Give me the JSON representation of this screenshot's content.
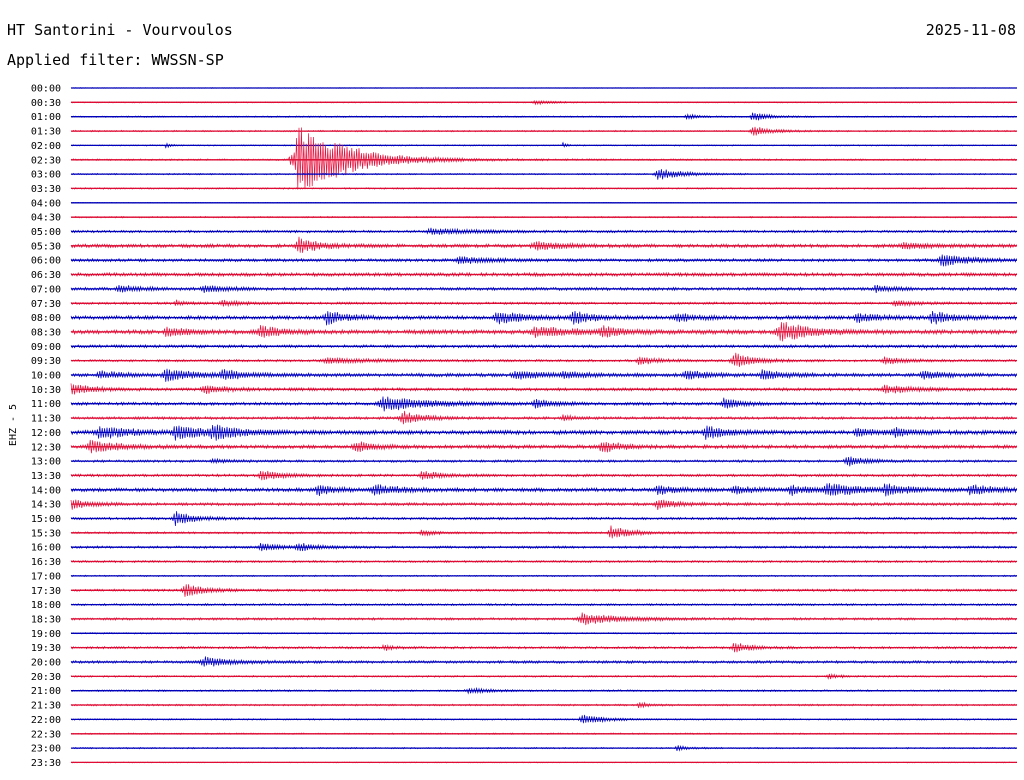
{
  "header": {
    "station": "HT Santorini - Vourvoulos",
    "date": "2025-11-08",
    "filter": "Applied filter: WWSSN-SP"
  },
  "chart_data": {
    "type": "helicorder",
    "title": "HT Santorini - Vourvoulos",
    "date": "2025-11-08",
    "filter": "WWSSN-SP",
    "channel_label": "EHZ - 5",
    "trace_colors": [
      "#0000cc",
      "#e8103c"
    ],
    "baseline_colors": [
      "#000099",
      "#cc0022"
    ],
    "grid": false,
    "rows": [
      {
        "label": "00:00",
        "noise": 0.3,
        "events": []
      },
      {
        "label": "00:30",
        "noise": 0.4,
        "events": [
          [
            0.49,
            2,
            0.02
          ]
        ]
      },
      {
        "label": "01:00",
        "noise": 0.5,
        "events": [
          [
            0.65,
            3,
            0.01
          ],
          [
            0.72,
            5,
            0.015
          ]
        ]
      },
      {
        "label": "01:30",
        "noise": 0.5,
        "events": [
          [
            0.72,
            5,
            0.02
          ]
        ]
      },
      {
        "label": "02:00",
        "noise": 0.4,
        "events": [
          [
            0.1,
            3,
            0.005
          ],
          [
            0.52,
            3,
            0.004
          ]
        ]
      },
      {
        "label": "02:30",
        "noise": 0.6,
        "events": [
          [
            0.24,
            35,
            0.05
          ],
          [
            0.28,
            5,
            0.02
          ]
        ]
      },
      {
        "label": "03:00",
        "noise": 0.5,
        "events": [
          [
            0.62,
            6,
            0.025
          ]
        ]
      },
      {
        "label": "03:30",
        "noise": 0.5,
        "events": []
      },
      {
        "label": "04:00",
        "noise": 0.3,
        "events": []
      },
      {
        "label": "04:30",
        "noise": 0.5,
        "events": []
      },
      {
        "label": "05:00",
        "noise": 0.8,
        "events": [
          [
            0.38,
            3,
            0.05
          ]
        ]
      },
      {
        "label": "05:30",
        "noise": 1.2,
        "events": [
          [
            0.24,
            8,
            0.02
          ],
          [
            0.49,
            4,
            0.03
          ],
          [
            0.88,
            3,
            0.03
          ]
        ]
      },
      {
        "label": "06:00",
        "noise": 1.0,
        "events": [
          [
            0.41,
            4,
            0.03
          ],
          [
            0.92,
            6,
            0.03
          ]
        ]
      },
      {
        "label": "06:30",
        "noise": 1.2,
        "events": []
      },
      {
        "label": "07:00",
        "noise": 1.0,
        "events": [
          [
            0.05,
            3,
            0.03
          ],
          [
            0.14,
            4,
            0.02
          ],
          [
            0.85,
            3,
            0.02
          ]
        ]
      },
      {
        "label": "07:30",
        "noise": 0.8,
        "events": [
          [
            0.11,
            3,
            0.01
          ],
          [
            0.16,
            3,
            0.02
          ],
          [
            0.87,
            3,
            0.02
          ]
        ]
      },
      {
        "label": "08:00",
        "noise": 1.3,
        "events": [
          [
            0.27,
            7,
            0.02
          ],
          [
            0.45,
            6,
            0.03
          ],
          [
            0.53,
            6,
            0.02
          ],
          [
            0.64,
            4,
            0.02
          ],
          [
            0.83,
            5,
            0.02
          ],
          [
            0.91,
            7,
            0.02
          ]
        ]
      },
      {
        "label": "08:30",
        "noise": 1.4,
        "events": [
          [
            0.1,
            5,
            0.02
          ],
          [
            0.2,
            6,
            0.02
          ],
          [
            0.49,
            5,
            0.04
          ],
          [
            0.56,
            5,
            0.02
          ],
          [
            0.75,
            11,
            0.03
          ]
        ]
      },
      {
        "label": "09:00",
        "noise": 1.0,
        "events": []
      },
      {
        "label": "09:30",
        "noise": 0.8,
        "events": [
          [
            0.27,
            3,
            0.04
          ],
          [
            0.6,
            4,
            0.02
          ],
          [
            0.7,
            8,
            0.02
          ],
          [
            0.86,
            4,
            0.02
          ]
        ]
      },
      {
        "label": "10:00",
        "noise": 1.2,
        "events": [
          [
            0.03,
            4,
            0.02
          ],
          [
            0.1,
            6,
            0.03
          ],
          [
            0.16,
            5,
            0.02
          ],
          [
            0.47,
            4,
            0.03
          ],
          [
            0.52,
            3,
            0.02
          ],
          [
            0.65,
            5,
            0.02
          ],
          [
            0.73,
            5,
            0.02
          ],
          [
            0.9,
            4,
            0.02
          ]
        ]
      },
      {
        "label": "10:30",
        "noise": 1.0,
        "events": [
          [
            0.0,
            6,
            0.02
          ],
          [
            0.14,
            5,
            0.02
          ],
          [
            0.86,
            4,
            0.03
          ]
        ]
      },
      {
        "label": "11:00",
        "noise": 1.0,
        "events": [
          [
            0.33,
            7,
            0.05
          ],
          [
            0.49,
            4,
            0.02
          ],
          [
            0.69,
            5,
            0.02
          ]
        ]
      },
      {
        "label": "11:30",
        "noise": 0.9,
        "events": [
          [
            0.35,
            7,
            0.02
          ],
          [
            0.52,
            3,
            0.01
          ]
        ]
      },
      {
        "label": "12:00",
        "noise": 1.4,
        "events": [
          [
            0.03,
            7,
            0.03
          ],
          [
            0.11,
            7,
            0.03
          ],
          [
            0.15,
            6,
            0.03
          ],
          [
            0.67,
            7,
            0.02
          ],
          [
            0.83,
            4,
            0.02
          ],
          [
            0.87,
            4,
            0.02
          ]
        ]
      },
      {
        "label": "12:30",
        "noise": 1.2,
        "events": [
          [
            0.02,
            6,
            0.03
          ],
          [
            0.3,
            5,
            0.02
          ],
          [
            0.56,
            6,
            0.02
          ]
        ]
      },
      {
        "label": "13:00",
        "noise": 0.8,
        "events": [
          [
            0.15,
            2,
            0.02
          ],
          [
            0.82,
            5,
            0.02
          ]
        ]
      },
      {
        "label": "13:30",
        "noise": 0.9,
        "events": [
          [
            0.2,
            6,
            0.02
          ],
          [
            0.37,
            5,
            0.02
          ]
        ]
      },
      {
        "label": "14:00",
        "noise": 1.2,
        "events": [
          [
            0.26,
            5,
            0.02
          ],
          [
            0.32,
            5,
            0.03
          ],
          [
            0.62,
            5,
            0.02
          ],
          [
            0.7,
            4,
            0.02
          ],
          [
            0.76,
            5,
            0.02
          ],
          [
            0.8,
            6,
            0.04
          ],
          [
            0.86,
            5,
            0.02
          ],
          [
            0.95,
            6,
            0.02
          ]
        ]
      },
      {
        "label": "14:30",
        "noise": 1.0,
        "events": [
          [
            0.0,
            5,
            0.02
          ],
          [
            0.62,
            5,
            0.02
          ]
        ]
      },
      {
        "label": "15:00",
        "noise": 0.8,
        "events": [
          [
            0.11,
            7,
            0.02
          ]
        ]
      },
      {
        "label": "15:30",
        "noise": 0.7,
        "events": [
          [
            0.37,
            4,
            0.01
          ],
          [
            0.57,
            7,
            0.02
          ]
        ]
      },
      {
        "label": "16:00",
        "noise": 0.8,
        "events": [
          [
            0.2,
            4,
            0.02
          ],
          [
            0.24,
            4,
            0.02
          ]
        ]
      },
      {
        "label": "16:30",
        "noise": 0.7,
        "events": []
      },
      {
        "label": "17:00",
        "noise": 0.5,
        "events": []
      },
      {
        "label": "17:30",
        "noise": 0.8,
        "events": [
          [
            0.12,
            7,
            0.02
          ]
        ]
      },
      {
        "label": "18:00",
        "noise": 0.7,
        "events": []
      },
      {
        "label": "18:30",
        "noise": 0.8,
        "events": [
          [
            0.54,
            6,
            0.04
          ]
        ]
      },
      {
        "label": "19:00",
        "noise": 0.5,
        "events": []
      },
      {
        "label": "19:30",
        "noise": 0.8,
        "events": [
          [
            0.33,
            3,
            0.01
          ],
          [
            0.7,
            5,
            0.02
          ]
        ]
      },
      {
        "label": "20:00",
        "noise": 0.9,
        "events": [
          [
            0.14,
            5,
            0.03
          ]
        ]
      },
      {
        "label": "20:30",
        "noise": 0.6,
        "events": [
          [
            0.8,
            3,
            0.01
          ]
        ]
      },
      {
        "label": "21:00",
        "noise": 0.6,
        "events": [
          [
            0.42,
            3,
            0.02
          ]
        ]
      },
      {
        "label": "21:30",
        "noise": 0.6,
        "events": [
          [
            0.6,
            3,
            0.01
          ]
        ]
      },
      {
        "label": "22:00",
        "noise": 0.5,
        "events": [
          [
            0.54,
            6,
            0.02
          ]
        ]
      },
      {
        "label": "22:30",
        "noise": 0.5,
        "events": []
      },
      {
        "label": "23:00",
        "noise": 0.5,
        "events": [
          [
            0.64,
            3,
            0.01
          ]
        ]
      },
      {
        "label": "23:30",
        "noise": 0.3,
        "events": []
      }
    ]
  }
}
